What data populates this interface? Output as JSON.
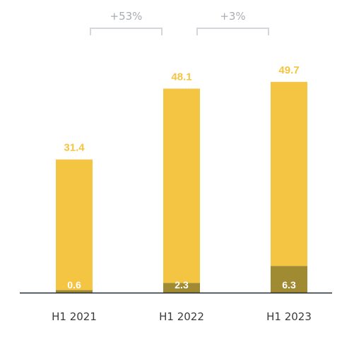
{
  "chart_data": {
    "type": "bar",
    "stacked": true,
    "categories": [
      "H1 2021",
      "H1 2022",
      "H1 2023"
    ],
    "totals": [
      31.4,
      48.1,
      49.7
    ],
    "series": [
      {
        "values": [
          0.6,
          2.3,
          6.3
        ],
        "color": "#a08a32"
      },
      {
        "values": [
          30.8,
          45.8,
          43.4
        ],
        "color": "#f4c443"
      }
    ],
    "total_labels": [
      "31.4",
      "48.1",
      "49.7"
    ],
    "segment_labels": [
      "0.6",
      "2.3",
      "6.3"
    ],
    "annotations": [
      {
        "from": "H1 2021",
        "to": "H1 2022",
        "label": "+53%"
      },
      {
        "from": "H1 2022",
        "to": "H1 2023",
        "label": "+3%"
      }
    ],
    "colors": {
      "total_label": "#f4c443",
      "bracket": "#d3d6da",
      "axis": "#222a36"
    },
    "ylim": [
      0,
      55
    ],
    "grid": false,
    "legend": "none"
  }
}
